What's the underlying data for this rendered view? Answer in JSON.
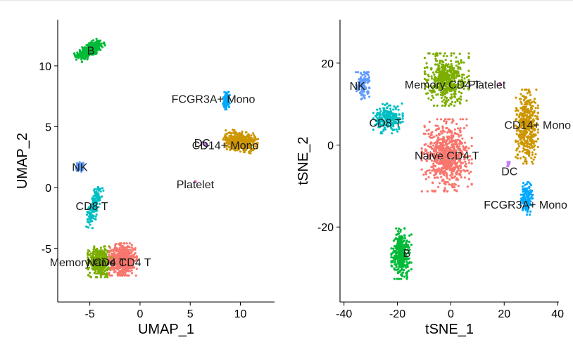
{
  "chart_data": [
    {
      "type": "scatter",
      "xlabel": "UMAP_1",
      "ylabel": "UMAP_2",
      "xlim": [
        -8.2,
        13.4
      ],
      "ylim": [
        -9.4,
        13.8
      ],
      "xticks": [
        -5,
        0,
        5,
        10
      ],
      "yticks": [
        -5,
        0,
        5,
        10
      ],
      "xtick_labels": [
        "-5",
        "0",
        "5",
        "10"
      ],
      "ytick_labels": [
        "-5",
        "0",
        "5",
        "10"
      ],
      "grid": false,
      "legend": "none",
      "clusters": [
        {
          "name": "B",
          "label": "B",
          "color": "#00BA38",
          "center": [
            -5.0,
            11.3
          ],
          "n": 330,
          "spread": [
            1.4,
            0.55
          ],
          "angle": 22
        },
        {
          "name": "NK",
          "label": "NK",
          "color": "#619CFF",
          "center": [
            -6.0,
            1.7
          ],
          "n": 70,
          "spread": [
            0.35,
            0.35
          ],
          "angle": 0
        },
        {
          "name": "CD8 T",
          "label": "CD8 T",
          "color": "#00BFC4",
          "center": [
            -4.6,
            -1.6
          ],
          "n": 160,
          "spread": [
            0.45,
            1.6
          ],
          "angle": -18
        },
        {
          "name": "Memory CD4 T",
          "label": "Memory CD4 T",
          "color": "#7CAE00",
          "center": [
            -4.0,
            -6.1
          ],
          "n": 420,
          "spread": [
            1.1,
            1.15
          ],
          "angle": 0
        },
        {
          "name": "Naive CD4 T",
          "label": "Naive CD4 T",
          "color": "#F8766D",
          "center": [
            -1.7,
            -5.9
          ],
          "n": 560,
          "spread": [
            1.25,
            1.2
          ],
          "angle": 0
        },
        {
          "name": "CD14+ Mono",
          "label": "CD14+ Mono",
          "color": "#CD9600",
          "center": [
            10.0,
            3.8
          ],
          "n": 420,
          "spread": [
            1.55,
            0.75
          ],
          "angle": -8
        },
        {
          "name": "FCGR3A+ Mono",
          "label": "FCGR3A+ Mono",
          "color": "#00A9FF",
          "center": [
            8.6,
            7.2
          ],
          "n": 90,
          "spread": [
            0.3,
            0.7
          ],
          "angle": 0
        },
        {
          "name": "DC",
          "label": "DC",
          "color": "#C77CFF",
          "center": [
            6.4,
            3.6
          ],
          "n": 10,
          "spread": [
            0.25,
            0.12
          ],
          "angle": 0
        },
        {
          "name": "Platelet",
          "label": "Platelet",
          "color": "#FF61CC",
          "center": [
            5.5,
            0.5
          ],
          "n": 3,
          "spread": [
            0.1,
            0.1
          ],
          "angle": 0
        }
      ],
      "labels": [
        {
          "text": "B",
          "x": -4.9,
          "y": 11.3
        },
        {
          "text": "FCGR3A+ Mono",
          "x": 7.3,
          "y": 7.3
        },
        {
          "text": "DC",
          "x": 6.2,
          "y": 3.7
        },
        {
          "text": "CD14+ Mono",
          "x": 8.5,
          "y": 3.5
        },
        {
          "text": "NK",
          "x": -6.0,
          "y": 1.7
        },
        {
          "text": "Platelet",
          "x": 5.5,
          "y": 0.3
        },
        {
          "text": "CD8 T",
          "x": -4.8,
          "y": -1.5
        },
        {
          "text": "Memory CD4 T",
          "x": -5.2,
          "y": -6.1
        },
        {
          "text": "Naive CD4 T",
          "x": -2.1,
          "y": -6.1
        }
      ]
    },
    {
      "type": "scatter",
      "xlabel": "tSNE_1",
      "ylabel": "tSNE_2",
      "xlim": [
        -41.5,
        40.5
      ],
      "ylim": [
        -38.3,
        30.6
      ],
      "xticks": [
        -40,
        -20,
        0,
        20,
        40
      ],
      "yticks": [
        -20,
        0,
        20
      ],
      "xtick_labels": [
        "-40",
        "-20",
        "0",
        "20",
        "40"
      ],
      "ytick_labels": [
        "-20",
        "0",
        "20"
      ],
      "grid": false,
      "legend": "none",
      "clusters": [
        {
          "name": "NK",
          "label": "NK",
          "color": "#619CFF",
          "center": [
            -33.0,
            14.5
          ],
          "n": 120,
          "spread": [
            2.3,
            3.0
          ],
          "angle": 0
        },
        {
          "name": "CD8 T",
          "label": "CD8 T",
          "color": "#00BFC4",
          "center": [
            -23.5,
            6.5
          ],
          "n": 230,
          "spread": [
            5.0,
            3.3
          ],
          "angle": 0
        },
        {
          "name": "Memory CD4 T",
          "label": "Memory CD4 T",
          "color": "#7CAE00",
          "center": [
            -1.5,
            16.0
          ],
          "n": 480,
          "spread": [
            7.5,
            5.8
          ],
          "angle": 0
        },
        {
          "name": "Naive CD4 T",
          "label": "Naive CD4 T",
          "color": "#F8766D",
          "center": [
            -1.5,
            -2.5
          ],
          "n": 700,
          "spread": [
            8.5,
            8.0
          ],
          "angle": 0
        },
        {
          "name": "B",
          "label": "B",
          "color": "#00BA38",
          "center": [
            -18.5,
            -26.5
          ],
          "n": 340,
          "spread": [
            3.4,
            5.6
          ],
          "angle": 0
        },
        {
          "name": "CD14+ Mono",
          "label": "CD14+ Mono",
          "color": "#CD9600",
          "center": [
            28.5,
            4.5
          ],
          "n": 440,
          "spread": [
            3.8,
            8.2
          ],
          "angle": 0
        },
        {
          "name": "FCGR3A+ Mono",
          "label": "FCGR3A+ Mono",
          "color": "#00A9FF",
          "center": [
            28.5,
            -13.0
          ],
          "n": 150,
          "spread": [
            2.0,
            3.6
          ],
          "angle": 0
        },
        {
          "name": "DC",
          "label": "DC",
          "color": "#C77CFF",
          "center": [
            21.5,
            -4.5
          ],
          "n": 12,
          "spread": [
            0.8,
            0.6
          ],
          "angle": 0
        },
        {
          "name": "Platelet",
          "label": "Platelet",
          "color": "#FF61CC",
          "center": [
            18.5,
            14.8
          ],
          "n": 3,
          "spread": [
            0.4,
            0.4
          ],
          "angle": 0
        }
      ],
      "labels": [
        {
          "text": "NK",
          "x": -35.0,
          "y": 14.5
        },
        {
          "text": "Memory CD4 T",
          "x": -3.0,
          "y": 14.8
        },
        {
          "text": "Platelet",
          "x": 13.5,
          "y": 14.8
        },
        {
          "text": "CD8 T",
          "x": -24.5,
          "y": 5.5
        },
        {
          "text": "CD14+ Mono",
          "x": 32.5,
          "y": 5.0
        },
        {
          "text": "Naive CD4 T",
          "x": -1.5,
          "y": -2.5
        },
        {
          "text": "DC",
          "x": 22.0,
          "y": -6.3
        },
        {
          "text": "FCGR3A+ Mono",
          "x": 28.0,
          "y": -14.5
        },
        {
          "text": "B",
          "x": -16.5,
          "y": -26.3
        }
      ]
    }
  ]
}
